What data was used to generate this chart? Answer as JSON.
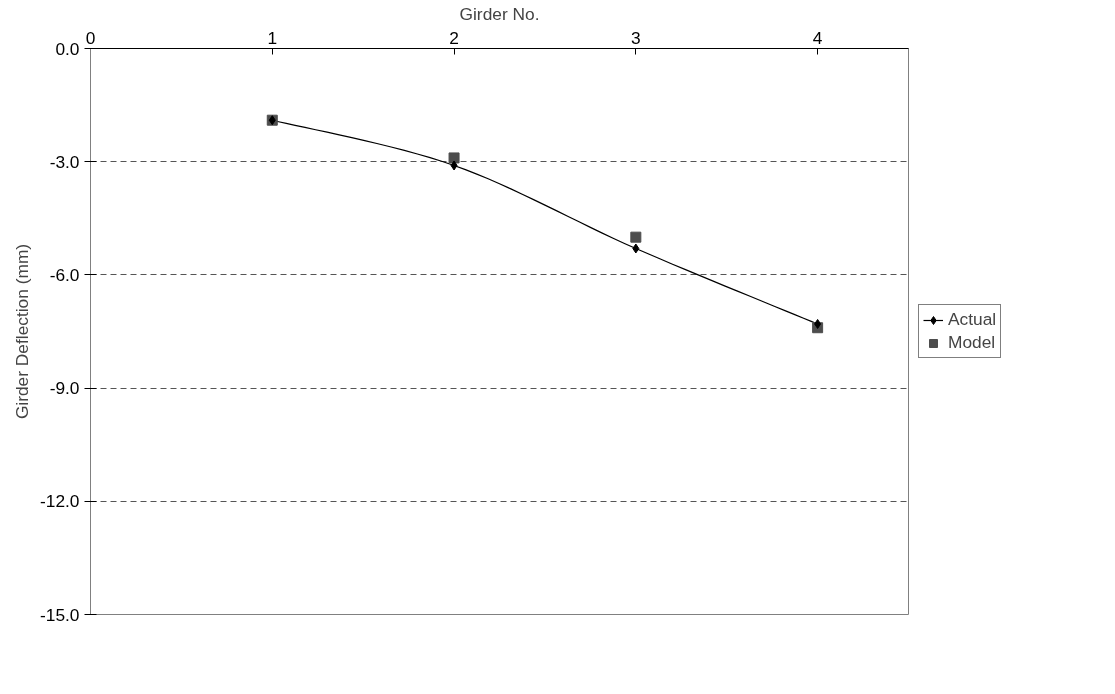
{
  "chart_data": {
    "type": "line",
    "xlabel": "Girder No.",
    "ylabel": "Girder Deflection (mm)",
    "x": [
      1,
      2,
      3,
      4
    ],
    "series": [
      {
        "name": "Actual",
        "type": "line",
        "color": "#000000",
        "marker": "diamond",
        "values": [
          -1.9,
          -3.1,
          -5.3,
          -7.3
        ]
      },
      {
        "name": "Model",
        "type": "scatter",
        "color": "#4d4d4d",
        "marker": "square",
        "values": [
          -1.9,
          -2.9,
          -5.0,
          -7.4
        ]
      }
    ],
    "xlim": [
      0,
      4.5
    ],
    "xticks": [
      0,
      1,
      2,
      3,
      4
    ],
    "ylim": [
      -15,
      0
    ],
    "yticks": [
      {
        "value": -15,
        "label": "-15.0"
      },
      {
        "value": -12,
        "label": "-12.0"
      },
      {
        "value": -9,
        "label": "-9.0"
      },
      {
        "value": -6,
        "label": "-6.0"
      },
      {
        "value": -3,
        "label": "-3.0"
      },
      {
        "value": 0,
        "label": "0.0"
      }
    ],
    "grid": "y",
    "legend": "right"
  }
}
